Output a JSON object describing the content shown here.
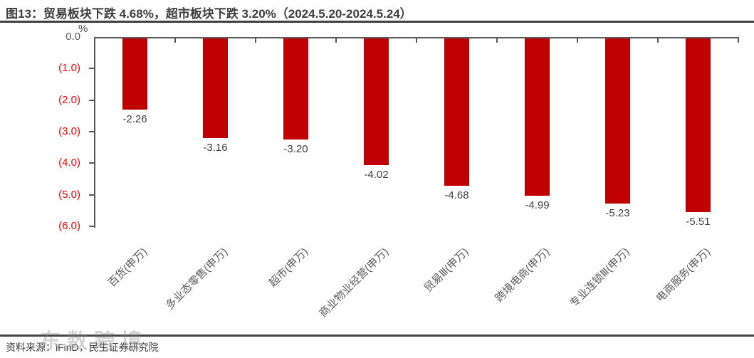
{
  "title": "图13：贸易板块下跌 4.68%，超市板块下跌 3.20%（2024.5.20-2024.5.24）",
  "footer": {
    "source": "资料来源：iFinD，民生证券研究院",
    "watermark": "东数跨境"
  },
  "chart_data": {
    "type": "bar",
    "title": "图13：贸易板块下跌 4.68%，超市板块下跌 3.20%（2024.5.20-2024.5.24）",
    "unit_label": "%",
    "categories": [
      "百货(申万)",
      "多业态零售(申万)",
      "超市(申万)",
      "商业物业经营(申万)",
      "贸易Ⅲ(申万)",
      "跨境电商(申万)",
      "专业连锁Ⅲ(申万)",
      "电商服务(申万)"
    ],
    "values": [
      -2.26,
      -3.16,
      -3.2,
      -4.02,
      -4.68,
      -4.99,
      -5.23,
      -5.51
    ],
    "data_labels": [
      "-2.26",
      "-3.16",
      "-3.20",
      "-4.02",
      "-4.68",
      "-4.99",
      "-5.23",
      "-5.51"
    ],
    "y_ticks": [
      {
        "label": "0.0",
        "value": 0
      },
      {
        "label": "(1.0)",
        "value": -1
      },
      {
        "label": "(2.0)",
        "value": -2
      },
      {
        "label": "(3.0)",
        "value": -3
      },
      {
        "label": "(4.0)",
        "value": -4
      },
      {
        "label": "(5.0)",
        "value": -5
      },
      {
        "label": "(6.0)",
        "value": -6
      }
    ],
    "ylim": [
      -6,
      0
    ],
    "xlabel": "",
    "ylabel": "%",
    "grid": false,
    "legend": "none",
    "colors": {
      "bar": "#c00000",
      "negative_tick_text": "#ff0000",
      "axis": "#595959",
      "label_text": "#404040"
    }
  }
}
